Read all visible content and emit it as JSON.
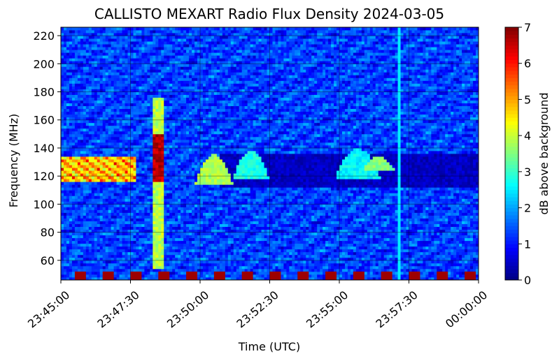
{
  "chart_data": {
    "type": "heatmap",
    "title": "CALLISTO MEXART Radio Flux Density 2024-03-05",
    "xlabel": "Time (UTC)",
    "ylabel": "Frequency (MHz)",
    "x_ticks": [
      "23:45:00",
      "23:47:30",
      "23:50:00",
      "23:52:30",
      "23:55:00",
      "23:57:30",
      "00:00:00"
    ],
    "x_range_seconds_from_start": [
      0,
      900
    ],
    "y_ticks": [
      60,
      80,
      100,
      120,
      140,
      160,
      180,
      200,
      220
    ],
    "ylim": [
      46,
      226
    ],
    "colorbar": {
      "label": "dB above background",
      "ticks": [
        0,
        1,
        2,
        3,
        4,
        5,
        6,
        7
      ],
      "range": [
        0,
        7
      ],
      "colormap": "jet"
    },
    "features": [
      {
        "type": "band",
        "t_start": 0,
        "t_end": 160,
        "f_low": 116,
        "f_high": 134,
        "level": 5.5
      },
      {
        "type": "burst",
        "t_start": 200,
        "t_end": 220,
        "f_low": 55,
        "f_high": 175,
        "level": 5.0
      },
      {
        "type": "arc",
        "t_start": 290,
        "t_end": 370,
        "f_low": 114,
        "f_high": 136,
        "level": 3.5
      },
      {
        "type": "arc",
        "t_start": 370,
        "t_end": 450,
        "f_low": 118,
        "f_high": 138,
        "level": 2.5
      },
      {
        "type": "arc",
        "t_start": 590,
        "t_end": 690,
        "f_low": 118,
        "f_high": 140,
        "level": 2.3
      },
      {
        "type": "arc",
        "t_start": 650,
        "t_end": 720,
        "f_low": 124,
        "f_high": 134,
        "level": 3.2
      },
      {
        "type": "dark_band",
        "t_start": 340,
        "t_end": 900,
        "f_low": 112,
        "f_high": 136,
        "level": 0.2
      },
      {
        "type": "line",
        "t_center": 728,
        "f_low": 46,
        "f_high": 226,
        "level": 2.5
      },
      {
        "type": "calibration_blocks",
        "count": 15,
        "f_low": 46,
        "f_high": 52,
        "level": 6.8
      }
    ]
  }
}
